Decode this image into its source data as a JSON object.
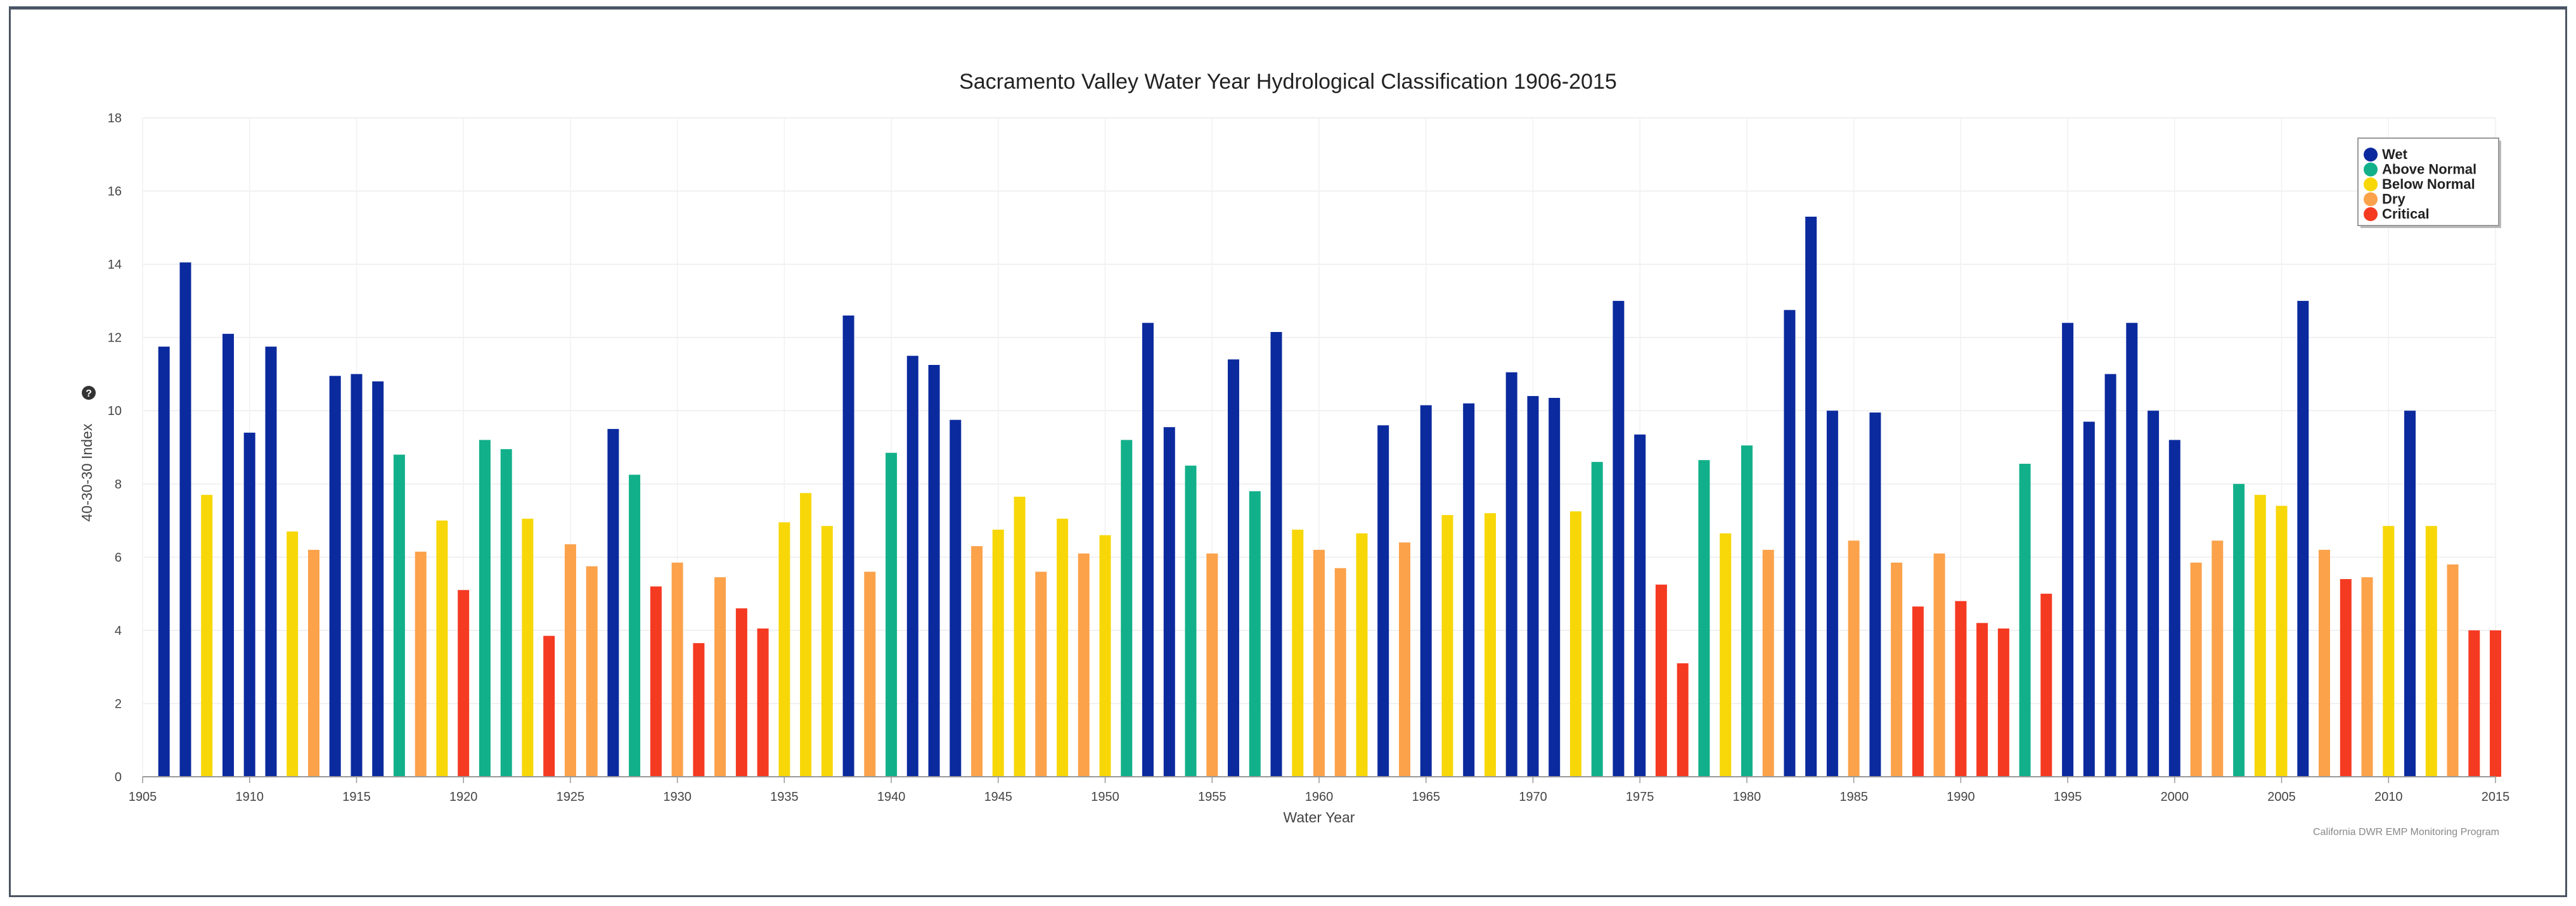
{
  "chart_data": {
    "type": "bar",
    "title": "Sacramento Valley Water Year Hydrological Classification 1906-2015",
    "xlabel": "Water Year",
    "ylabel": "40-30-30 Index",
    "ylim": [
      0,
      18
    ],
    "xlim": [
      1905,
      2015
    ],
    "y_ticks": [
      "0",
      "2",
      "4",
      "6",
      "8",
      "10",
      "12",
      "14",
      "16",
      "18"
    ],
    "x_ticks": [
      "1905",
      "1910",
      "1915",
      "1920",
      "1925",
      "1930",
      "1935",
      "1940",
      "1945",
      "1950",
      "1955",
      "1960",
      "1965",
      "1970",
      "1975",
      "1980",
      "1985",
      "1990",
      "1995",
      "2000",
      "2005",
      "2010",
      "2015"
    ],
    "grid": true,
    "legend_position": "top-right",
    "credit": "California DWR EMP Monitoring Program",
    "help_icon": "question-circle-icon",
    "categories": [
      {
        "key": "W",
        "name": "Wet",
        "color": "#0b2a9e"
      },
      {
        "key": "AN",
        "name": "Above Normal",
        "color": "#12b08a"
      },
      {
        "key": "BN",
        "name": "Below Normal",
        "color": "#f7d708"
      },
      {
        "key": "D",
        "name": "Dry",
        "color": "#fba24b"
      },
      {
        "key": "C",
        "name": "Critical",
        "color": "#f53a22"
      }
    ],
    "data": [
      {
        "year": 1906,
        "value": 11.75,
        "cls": "W"
      },
      {
        "year": 1907,
        "value": 14.05,
        "cls": "W"
      },
      {
        "year": 1908,
        "value": 7.7,
        "cls": "BN"
      },
      {
        "year": 1909,
        "value": 12.1,
        "cls": "W"
      },
      {
        "year": 1910,
        "value": 9.4,
        "cls": "W"
      },
      {
        "year": 1911,
        "value": 11.75,
        "cls": "W"
      },
      {
        "year": 1912,
        "value": 6.7,
        "cls": "BN"
      },
      {
        "year": 1913,
        "value": 6.2,
        "cls": "D"
      },
      {
        "year": 1914,
        "value": 10.95,
        "cls": "W"
      },
      {
        "year": 1915,
        "value": 11.0,
        "cls": "W"
      },
      {
        "year": 1916,
        "value": 10.8,
        "cls": "W"
      },
      {
        "year": 1917,
        "value": 8.8,
        "cls": "AN"
      },
      {
        "year": 1918,
        "value": 6.15,
        "cls": "D"
      },
      {
        "year": 1919,
        "value": 7.0,
        "cls": "BN"
      },
      {
        "year": 1920,
        "value": 5.1,
        "cls": "C"
      },
      {
        "year": 1921,
        "value": 9.2,
        "cls": "AN"
      },
      {
        "year": 1922,
        "value": 8.95,
        "cls": "AN"
      },
      {
        "year": 1923,
        "value": 7.05,
        "cls": "BN"
      },
      {
        "year": 1924,
        "value": 3.85,
        "cls": "C"
      },
      {
        "year": 1925,
        "value": 6.35,
        "cls": "D"
      },
      {
        "year": 1926,
        "value": 5.75,
        "cls": "D"
      },
      {
        "year": 1927,
        "value": 9.5,
        "cls": "W"
      },
      {
        "year": 1928,
        "value": 8.25,
        "cls": "AN"
      },
      {
        "year": 1929,
        "value": 5.2,
        "cls": "C"
      },
      {
        "year": 1930,
        "value": 5.85,
        "cls": "D"
      },
      {
        "year": 1931,
        "value": 3.65,
        "cls": "C"
      },
      {
        "year": 1932,
        "value": 5.45,
        "cls": "D"
      },
      {
        "year": 1933,
        "value": 4.6,
        "cls": "C"
      },
      {
        "year": 1934,
        "value": 4.05,
        "cls": "C"
      },
      {
        "year": 1935,
        "value": 6.95,
        "cls": "BN"
      },
      {
        "year": 1936,
        "value": 7.75,
        "cls": "BN"
      },
      {
        "year": 1937,
        "value": 6.85,
        "cls": "BN"
      },
      {
        "year": 1938,
        "value": 12.6,
        "cls": "W"
      },
      {
        "year": 1939,
        "value": 5.6,
        "cls": "D"
      },
      {
        "year": 1940,
        "value": 8.85,
        "cls": "AN"
      },
      {
        "year": 1941,
        "value": 11.5,
        "cls": "W"
      },
      {
        "year": 1942,
        "value": 11.25,
        "cls": "W"
      },
      {
        "year": 1943,
        "value": 9.75,
        "cls": "W"
      },
      {
        "year": 1944,
        "value": 6.3,
        "cls": "D"
      },
      {
        "year": 1945,
        "value": 6.75,
        "cls": "BN"
      },
      {
        "year": 1946,
        "value": 7.65,
        "cls": "BN"
      },
      {
        "year": 1947,
        "value": 5.6,
        "cls": "D"
      },
      {
        "year": 1948,
        "value": 7.05,
        "cls": "BN"
      },
      {
        "year": 1949,
        "value": 6.1,
        "cls": "D"
      },
      {
        "year": 1950,
        "value": 6.6,
        "cls": "BN"
      },
      {
        "year": 1951,
        "value": 9.2,
        "cls": "AN"
      },
      {
        "year": 1952,
        "value": 12.4,
        "cls": "W"
      },
      {
        "year": 1953,
        "value": 9.55,
        "cls": "W"
      },
      {
        "year": 1954,
        "value": 8.5,
        "cls": "AN"
      },
      {
        "year": 1955,
        "value": 6.1,
        "cls": "D"
      },
      {
        "year": 1956,
        "value": 11.4,
        "cls": "W"
      },
      {
        "year": 1957,
        "value": 7.8,
        "cls": "AN"
      },
      {
        "year": 1958,
        "value": 12.15,
        "cls": "W"
      },
      {
        "year": 1959,
        "value": 6.75,
        "cls": "BN"
      },
      {
        "year": 1960,
        "value": 6.2,
        "cls": "D"
      },
      {
        "year": 1961,
        "value": 5.7,
        "cls": "D"
      },
      {
        "year": 1962,
        "value": 6.65,
        "cls": "BN"
      },
      {
        "year": 1963,
        "value": 9.6,
        "cls": "W"
      },
      {
        "year": 1964,
        "value": 6.4,
        "cls": "D"
      },
      {
        "year": 1965,
        "value": 10.15,
        "cls": "W"
      },
      {
        "year": 1966,
        "value": 7.15,
        "cls": "BN"
      },
      {
        "year": 1967,
        "value": 10.2,
        "cls": "W"
      },
      {
        "year": 1968,
        "value": 7.2,
        "cls": "BN"
      },
      {
        "year": 1969,
        "value": 11.05,
        "cls": "W"
      },
      {
        "year": 1970,
        "value": 10.4,
        "cls": "W"
      },
      {
        "year": 1971,
        "value": 10.35,
        "cls": "W"
      },
      {
        "year": 1972,
        "value": 7.25,
        "cls": "BN"
      },
      {
        "year": 1973,
        "value": 8.6,
        "cls": "AN"
      },
      {
        "year": 1974,
        "value": 13.0,
        "cls": "W"
      },
      {
        "year": 1975,
        "value": 9.35,
        "cls": "W"
      },
      {
        "year": 1976,
        "value": 5.25,
        "cls": "C"
      },
      {
        "year": 1977,
        "value": 3.1,
        "cls": "C"
      },
      {
        "year": 1978,
        "value": 8.65,
        "cls": "AN"
      },
      {
        "year": 1979,
        "value": 6.65,
        "cls": "BN"
      },
      {
        "year": 1980,
        "value": 9.05,
        "cls": "AN"
      },
      {
        "year": 1981,
        "value": 6.2,
        "cls": "D"
      },
      {
        "year": 1982,
        "value": 12.75,
        "cls": "W"
      },
      {
        "year": 1983,
        "value": 15.3,
        "cls": "W"
      },
      {
        "year": 1984,
        "value": 10.0,
        "cls": "W"
      },
      {
        "year": 1985,
        "value": 6.45,
        "cls": "D"
      },
      {
        "year": 1986,
        "value": 9.95,
        "cls": "W"
      },
      {
        "year": 1987,
        "value": 5.85,
        "cls": "D"
      },
      {
        "year": 1988,
        "value": 4.65,
        "cls": "C"
      },
      {
        "year": 1989,
        "value": 6.1,
        "cls": "D"
      },
      {
        "year": 1990,
        "value": 4.8,
        "cls": "C"
      },
      {
        "year": 1991,
        "value": 4.2,
        "cls": "C"
      },
      {
        "year": 1992,
        "value": 4.05,
        "cls": "C"
      },
      {
        "year": 1993,
        "value": 8.55,
        "cls": "AN"
      },
      {
        "year": 1994,
        "value": 5.0,
        "cls": "C"
      },
      {
        "year": 1995,
        "value": 12.4,
        "cls": "W"
      },
      {
        "year": 1996,
        "value": 9.7,
        "cls": "W"
      },
      {
        "year": 1997,
        "value": 11.0,
        "cls": "W"
      },
      {
        "year": 1998,
        "value": 12.4,
        "cls": "W"
      },
      {
        "year": 1999,
        "value": 10.0,
        "cls": "W"
      },
      {
        "year": 2000,
        "value": 9.2,
        "cls": "W"
      },
      {
        "year": 2001,
        "value": 5.85,
        "cls": "D"
      },
      {
        "year": 2002,
        "value": 6.45,
        "cls": "D"
      },
      {
        "year": 2003,
        "value": 8.0,
        "cls": "AN"
      },
      {
        "year": 2004,
        "value": 7.7,
        "cls": "BN"
      },
      {
        "year": 2005,
        "value": 7.4,
        "cls": "BN"
      },
      {
        "year": 2006,
        "value": 13.0,
        "cls": "W"
      },
      {
        "year": 2007,
        "value": 6.2,
        "cls": "D"
      },
      {
        "year": 2008,
        "value": 5.4,
        "cls": "C"
      },
      {
        "year": 2009,
        "value": 5.45,
        "cls": "D"
      },
      {
        "year": 2010,
        "value": 6.85,
        "cls": "BN"
      },
      {
        "year": 2011,
        "value": 10.0,
        "cls": "W"
      },
      {
        "year": 2012,
        "value": 6.85,
        "cls": "BN"
      },
      {
        "year": 2013,
        "value": 5.8,
        "cls": "D"
      },
      {
        "year": 2014,
        "value": 4.0,
        "cls": "C"
      },
      {
        "year": 2015,
        "value": 4.0,
        "cls": "C"
      }
    ]
  }
}
